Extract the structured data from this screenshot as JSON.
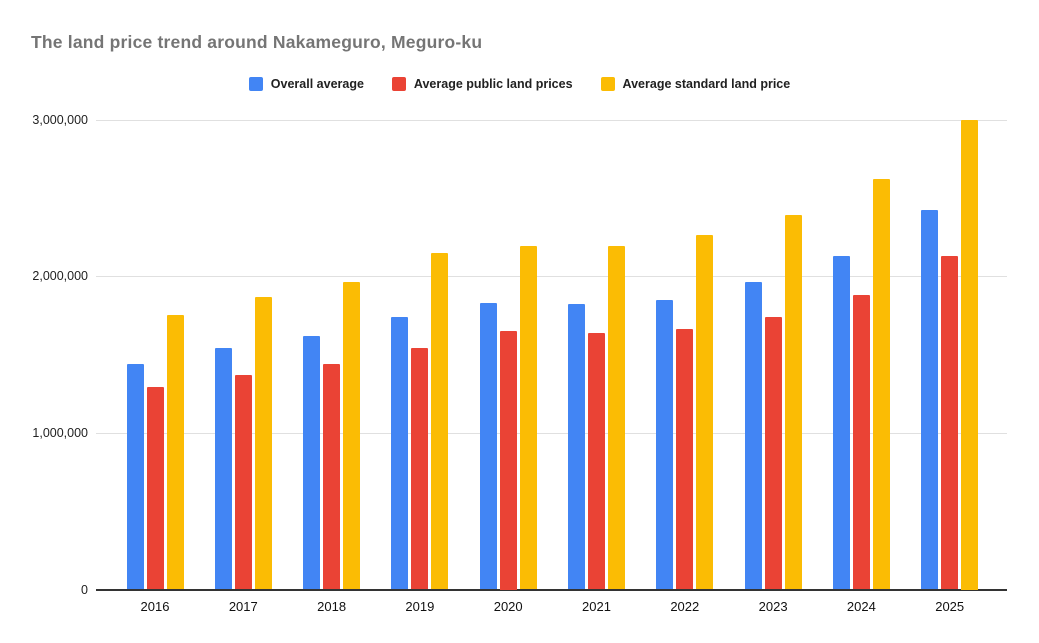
{
  "chart_data": {
    "type": "bar",
    "title": "The land price trend around Nakameguro, Meguro-ku",
    "categories": [
      "2016",
      "2017",
      "2018",
      "2019",
      "2020",
      "2021",
      "2022",
      "2023",
      "2024",
      "2025"
    ],
    "series": [
      {
        "name": "Overall average",
        "color": "#4285F4",
        "values": [
          1440000,
          1540000,
          1620000,
          1740000,
          1830000,
          1820000,
          1850000,
          1960000,
          2130000,
          2420000
        ]
      },
      {
        "name": "Average public land prices",
        "color": "#EA4335",
        "values": [
          1290000,
          1370000,
          1440000,
          1540000,
          1650000,
          1640000,
          1660000,
          1740000,
          1880000,
          2130000
        ]
      },
      {
        "name": "Average standard land price",
        "color": "#FBBC04",
        "values": [
          1750000,
          1870000,
          1960000,
          2150000,
          2190000,
          2190000,
          2260000,
          2390000,
          2620000,
          3000000
        ]
      }
    ],
    "xlabel": "",
    "ylabel": "",
    "ylim": [
      0,
      3000000
    ],
    "yticks": [
      {
        "value": 0,
        "label": "0"
      },
      {
        "value": 1000000,
        "label": "1,000,000"
      },
      {
        "value": 2000000,
        "label": "2,000,000"
      },
      {
        "value": 3000000,
        "label": "3,000,000"
      }
    ],
    "grid": true,
    "legend_position": "top",
    "colors": {
      "title_text": "#757575",
      "legend_text": "#212121",
      "axis_text": "#222222",
      "gridline": "#e0e0e0",
      "axis_line": "#333333",
      "background": "#ffffff"
    }
  }
}
